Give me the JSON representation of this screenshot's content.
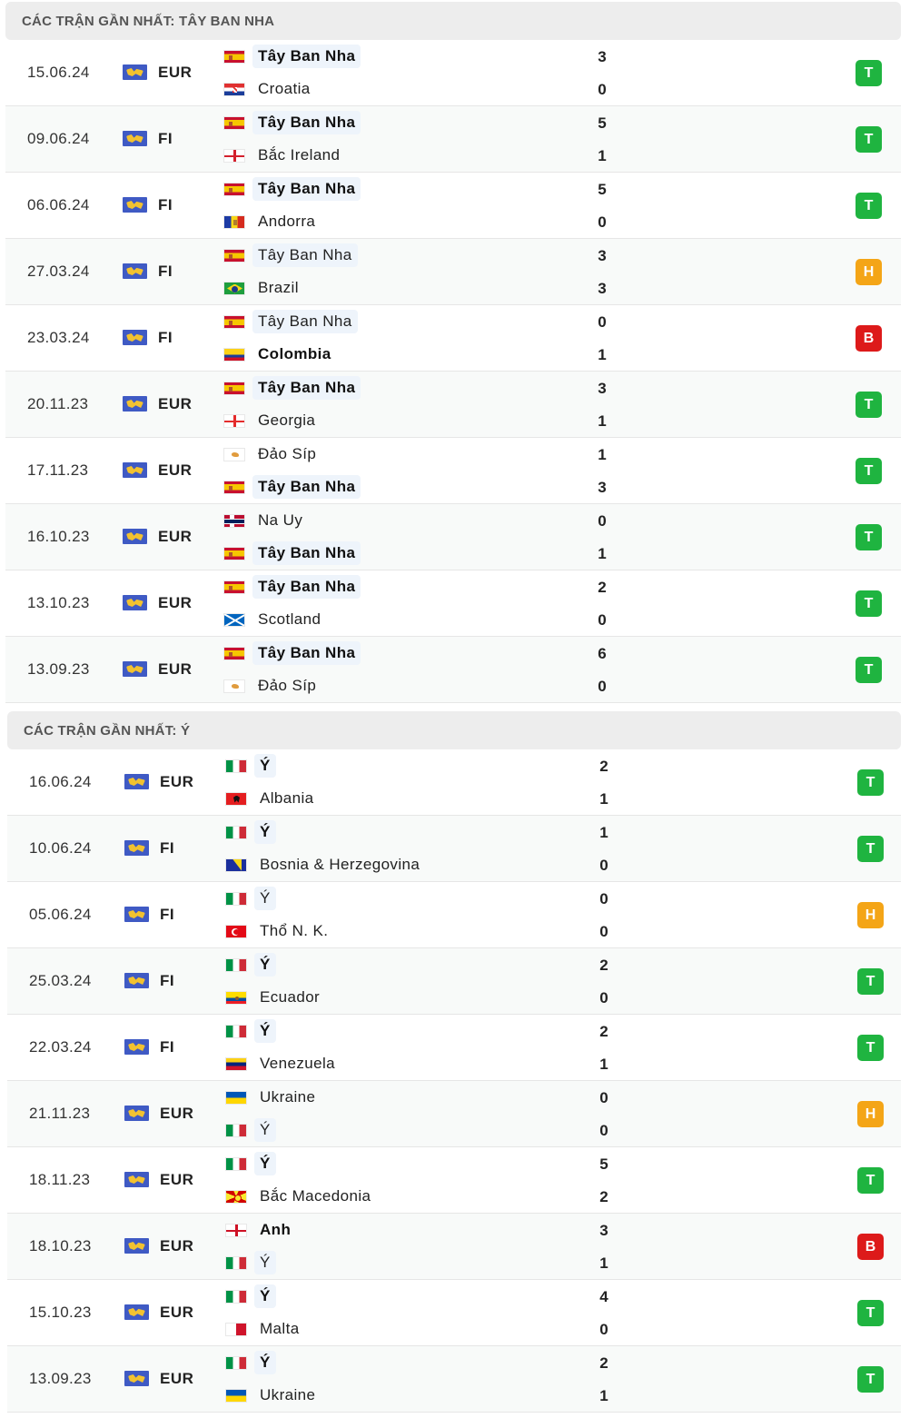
{
  "sections": [
    {
      "title": "CÁC TRẬN GẦN NHẤT: TÂY BAN NHA",
      "matches": [
        {
          "date": "15.06.24",
          "competition": "EUR",
          "home": {
            "name": "Tây Ban Nha",
            "flag": "esp",
            "score": "3",
            "highlight": true,
            "bold": true
          },
          "away": {
            "name": "Croatia",
            "flag": "cro",
            "score": "0",
            "highlight": false,
            "bold": false
          },
          "result": "T"
        },
        {
          "date": "09.06.24",
          "competition": "FI",
          "home": {
            "name": "Tây Ban Nha",
            "flag": "esp",
            "score": "5",
            "highlight": true,
            "bold": true
          },
          "away": {
            "name": "Bắc Ireland",
            "flag": "nir",
            "score": "1",
            "highlight": false,
            "bold": false
          },
          "result": "T"
        },
        {
          "date": "06.06.24",
          "competition": "FI",
          "home": {
            "name": "Tây Ban Nha",
            "flag": "esp",
            "score": "5",
            "highlight": true,
            "bold": true
          },
          "away": {
            "name": "Andorra",
            "flag": "and",
            "score": "0",
            "highlight": false,
            "bold": false
          },
          "result": "T"
        },
        {
          "date": "27.03.24",
          "competition": "FI",
          "home": {
            "name": "Tây Ban Nha",
            "flag": "esp",
            "score": "3",
            "highlight": true,
            "bold": false
          },
          "away": {
            "name": "Brazil",
            "flag": "bra",
            "score": "3",
            "highlight": false,
            "bold": false
          },
          "result": "H"
        },
        {
          "date": "23.03.24",
          "competition": "FI",
          "home": {
            "name": "Tây Ban Nha",
            "flag": "esp",
            "score": "0",
            "highlight": true,
            "bold": false
          },
          "away": {
            "name": "Colombia",
            "flag": "col",
            "score": "1",
            "highlight": false,
            "bold": true
          },
          "result": "B"
        },
        {
          "date": "20.11.23",
          "competition": "EUR",
          "home": {
            "name": "Tây Ban Nha",
            "flag": "esp",
            "score": "3",
            "highlight": true,
            "bold": true
          },
          "away": {
            "name": "Georgia",
            "flag": "geo",
            "score": "1",
            "highlight": false,
            "bold": false
          },
          "result": "T"
        },
        {
          "date": "17.11.23",
          "competition": "EUR",
          "home": {
            "name": "Đảo Síp",
            "flag": "cyp",
            "score": "1",
            "highlight": false,
            "bold": false
          },
          "away": {
            "name": "Tây Ban Nha",
            "flag": "esp",
            "score": "3",
            "highlight": true,
            "bold": true
          },
          "result": "T"
        },
        {
          "date": "16.10.23",
          "competition": "EUR",
          "home": {
            "name": "Na Uy",
            "flag": "nor",
            "score": "0",
            "highlight": false,
            "bold": false
          },
          "away": {
            "name": "Tây Ban Nha",
            "flag": "esp",
            "score": "1",
            "highlight": true,
            "bold": true
          },
          "result": "T"
        },
        {
          "date": "13.10.23",
          "competition": "EUR",
          "home": {
            "name": "Tây Ban Nha",
            "flag": "esp",
            "score": "2",
            "highlight": true,
            "bold": true
          },
          "away": {
            "name": "Scotland",
            "flag": "sco",
            "score": "0",
            "highlight": false,
            "bold": false
          },
          "result": "T"
        },
        {
          "date": "13.09.23",
          "competition": "EUR",
          "home": {
            "name": "Tây Ban Nha",
            "flag": "esp",
            "score": "6",
            "highlight": true,
            "bold": true
          },
          "away": {
            "name": "Đảo Síp",
            "flag": "cyp",
            "score": "0",
            "highlight": false,
            "bold": false
          },
          "result": "T"
        }
      ]
    },
    {
      "title": "CÁC TRẬN GẦN NHẤT: Ý",
      "matches": [
        {
          "date": "16.06.24",
          "competition": "EUR",
          "home": {
            "name": "Ý",
            "flag": "ita",
            "score": "2",
            "highlight": true,
            "bold": true
          },
          "away": {
            "name": "Albania",
            "flag": "alb",
            "score": "1",
            "highlight": false,
            "bold": false
          },
          "result": "T"
        },
        {
          "date": "10.06.24",
          "competition": "FI",
          "home": {
            "name": "Ý",
            "flag": "ita",
            "score": "1",
            "highlight": true,
            "bold": true
          },
          "away": {
            "name": "Bosnia & Herzegovina",
            "flag": "bih",
            "score": "0",
            "highlight": false,
            "bold": false
          },
          "result": "T"
        },
        {
          "date": "05.06.24",
          "competition": "FI",
          "home": {
            "name": "Ý",
            "flag": "ita",
            "score": "0",
            "highlight": true,
            "bold": false
          },
          "away": {
            "name": "Thổ N. K.",
            "flag": "tur",
            "score": "0",
            "highlight": false,
            "bold": false
          },
          "result": "H"
        },
        {
          "date": "25.03.24",
          "competition": "FI",
          "home": {
            "name": "Ý",
            "flag": "ita",
            "score": "2",
            "highlight": true,
            "bold": true
          },
          "away": {
            "name": "Ecuador",
            "flag": "ecu",
            "score": "0",
            "highlight": false,
            "bold": false
          },
          "result": "T"
        },
        {
          "date": "22.03.24",
          "competition": "FI",
          "home": {
            "name": "Ý",
            "flag": "ita",
            "score": "2",
            "highlight": true,
            "bold": true
          },
          "away": {
            "name": "Venezuela",
            "flag": "ven",
            "score": "1",
            "highlight": false,
            "bold": false
          },
          "result": "T"
        },
        {
          "date": "21.11.23",
          "competition": "EUR",
          "home": {
            "name": "Ukraine",
            "flag": "ukr",
            "score": "0",
            "highlight": false,
            "bold": false
          },
          "away": {
            "name": "Ý",
            "flag": "ita",
            "score": "0",
            "highlight": true,
            "bold": false
          },
          "result": "H"
        },
        {
          "date": "18.11.23",
          "competition": "EUR",
          "home": {
            "name": "Ý",
            "flag": "ita",
            "score": "5",
            "highlight": true,
            "bold": true
          },
          "away": {
            "name": "Bắc Macedonia",
            "flag": "mkd",
            "score": "2",
            "highlight": false,
            "bold": false
          },
          "result": "T"
        },
        {
          "date": "18.10.23",
          "competition": "EUR",
          "home": {
            "name": "Anh",
            "flag": "eng",
            "score": "3",
            "highlight": false,
            "bold": true
          },
          "away": {
            "name": "Ý",
            "flag": "ita",
            "score": "1",
            "highlight": true,
            "bold": false
          },
          "result": "B"
        },
        {
          "date": "15.10.23",
          "competition": "EUR",
          "home": {
            "name": "Ý",
            "flag": "ita",
            "score": "4",
            "highlight": true,
            "bold": true
          },
          "away": {
            "name": "Malta",
            "flag": "mlt",
            "score": "0",
            "highlight": false,
            "bold": false
          },
          "result": "T"
        },
        {
          "date": "13.09.23",
          "competition": "EUR",
          "home": {
            "name": "Ý",
            "flag": "ita",
            "score": "2",
            "highlight": true,
            "bold": true
          },
          "away": {
            "name": "Ukraine",
            "flag": "ukr",
            "score": "1",
            "highlight": false,
            "bold": false
          },
          "result": "T"
        }
      ]
    }
  ],
  "icons": {
    "competition": "world-map-icon"
  },
  "colors": {
    "win": "#1fb440",
    "draw": "#f4a517",
    "loss": "#dd1a1a",
    "header_bg": "#ededed",
    "highlight_bg": "#eef4fb"
  }
}
